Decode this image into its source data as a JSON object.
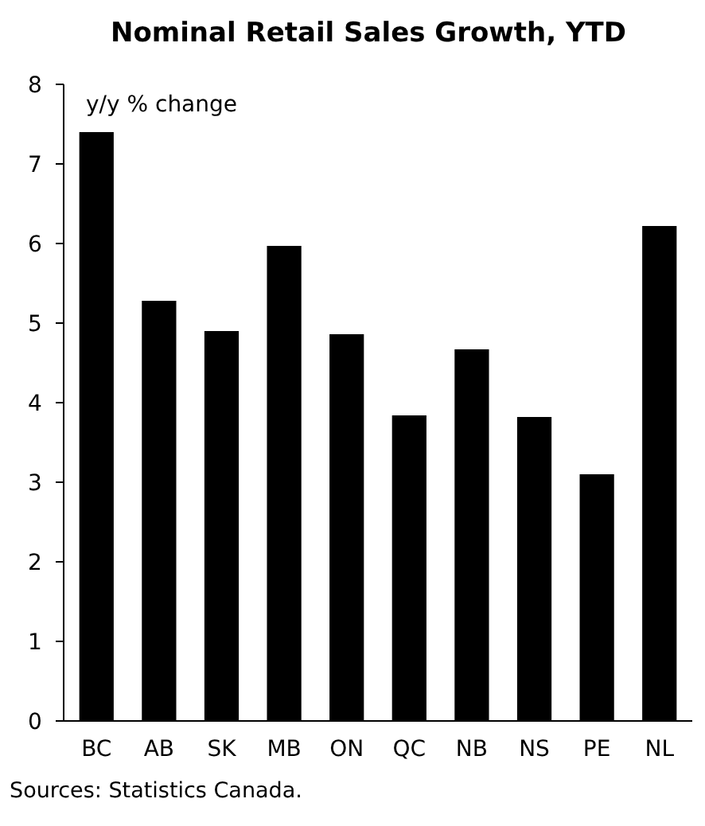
{
  "chart_data": {
    "type": "bar",
    "title": "Nominal Retail Sales Growth, YTD",
    "ylabel": "y/y % change",
    "categories": [
      "BC",
      "AB",
      "SK",
      "MB",
      "ON",
      "QC",
      "NB",
      "NS",
      "PE",
      "NL"
    ],
    "values": [
      7.4,
      5.28,
      4.9,
      5.97,
      4.86,
      3.84,
      4.67,
      3.82,
      3.1,
      6.22
    ],
    "color": "#000000",
    "ylim": [
      0,
      8
    ],
    "yticks": [
      0,
      1,
      2,
      3,
      4,
      5,
      6,
      7,
      8
    ],
    "grid": false,
    "annotations": [
      "Sources: Statistics Canada."
    ]
  }
}
